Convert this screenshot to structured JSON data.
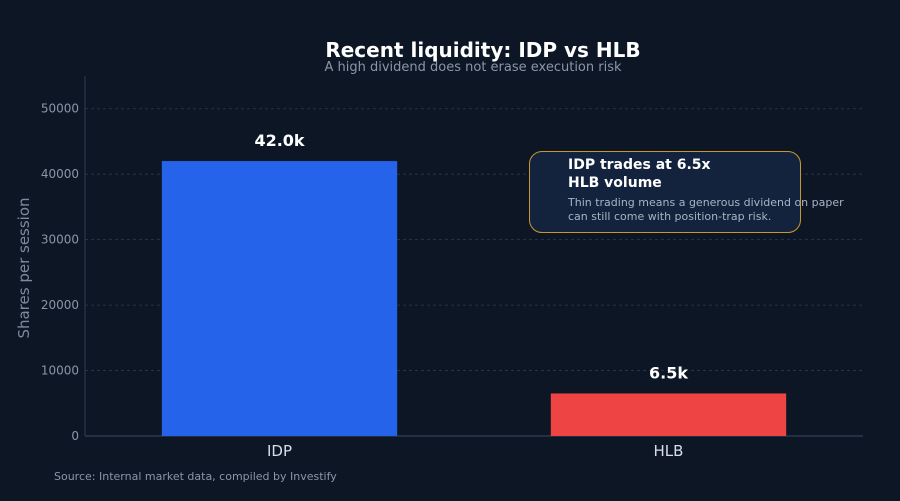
{
  "chart_data": {
    "type": "bar",
    "title": "Recent liquidity: IDP vs HLB",
    "subtitle": "A high dividend does not erase execution risk",
    "ylabel": "Shares per session",
    "xlabel": "",
    "categories": [
      "IDP",
      "HLB"
    ],
    "values": [
      42000,
      6500
    ],
    "data_labels": [
      "42.0k",
      "6.5k"
    ],
    "colors": [
      "#2563eb",
      "#ef4444"
    ],
    "ylim": [
      0,
      55000
    ],
    "yticks": [
      0,
      10000,
      20000,
      30000,
      40000,
      50000
    ],
    "ytick_labels": [
      "0",
      "10000",
      "20000",
      "30000",
      "40000",
      "50000"
    ],
    "grid": true,
    "annotation": {
      "title": "IDP trades at 6.5x HLB volume",
      "body": "Thin trading means a generous dividend on paper can still come with position-trap risk.",
      "border_color": "#c9972b"
    }
  },
  "source": "Source: Internal market data, compiled by Investify"
}
